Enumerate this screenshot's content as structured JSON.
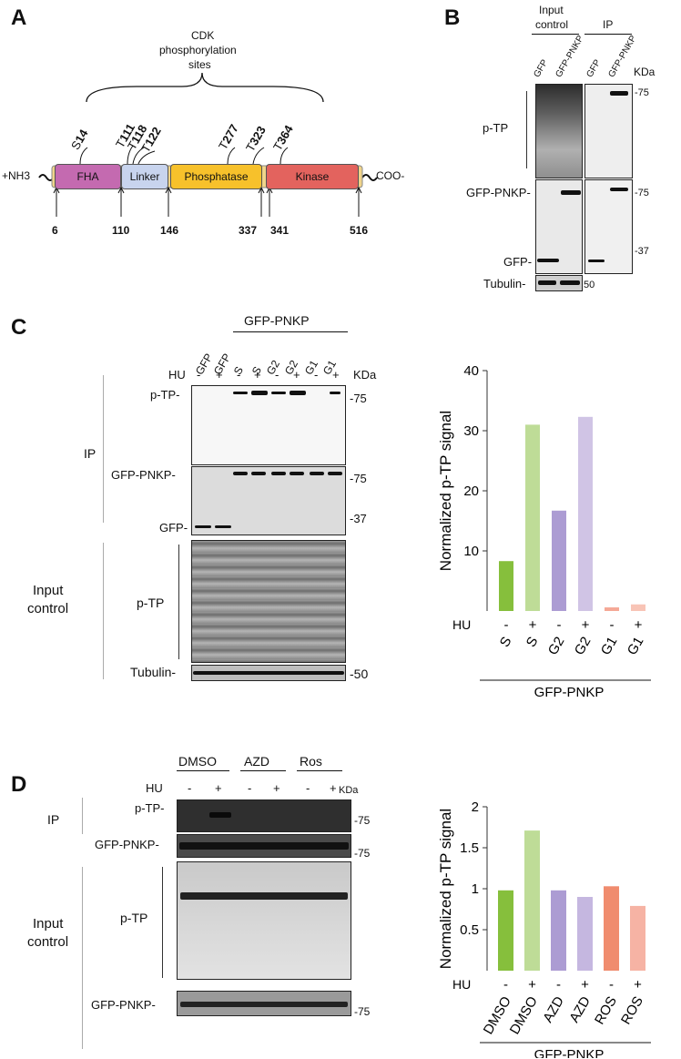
{
  "panels": {
    "a": "A",
    "b": "B",
    "c": "C",
    "d": "D"
  },
  "panel_a": {
    "title_line1": "CDK",
    "title_line2": "phosphorylation",
    "title_line3": "sites",
    "n_term": "+NH3",
    "c_term": "COO-",
    "domains": [
      {
        "label": "FHA",
        "color": "#c46ab0"
      },
      {
        "label": "Linker",
        "color": "#c8d4ee"
      },
      {
        "label": "Phosphatase",
        "color": "#f7c12b"
      },
      {
        "label": "Kinase",
        "color": "#e3635e"
      }
    ],
    "sites": [
      {
        "prefix": "S",
        "num": "14"
      },
      {
        "prefix": "T",
        "num": "111"
      },
      {
        "prefix": "T",
        "num": "118"
      },
      {
        "prefix": "T",
        "num": "122"
      },
      {
        "prefix": "T",
        "num": "277"
      },
      {
        "prefix": "T",
        "num": "323"
      },
      {
        "prefix": "T",
        "num": "364"
      }
    ],
    "boundaries": [
      "6",
      "110",
      "146",
      "337",
      "341",
      "516"
    ]
  },
  "panel_b": {
    "group_input_l1": "Input",
    "group_input_l2": "control",
    "group_ip": "IP",
    "lanes": [
      "GFP",
      "GFP-PNKP",
      "GFP",
      "GFP-PNKP"
    ],
    "kda": "KDa",
    "rows": [
      "p-TP",
      "GFP-PNKP-",
      "GFP-",
      "Tubulin-"
    ],
    "markers": [
      "-75",
      "-75",
      "-37",
      "50"
    ]
  },
  "panel_c": {
    "group": "GFP-PNKP",
    "lanes": [
      "GFP",
      "GFP",
      "S",
      "S",
      "G2",
      "G2",
      "G1",
      "G1"
    ],
    "hu_label": "HU",
    "hu": [
      "-",
      "+",
      "-",
      "+",
      "-",
      "+",
      "-",
      "+"
    ],
    "kda": "KDa",
    "ip": "IP",
    "input_l1": "Input",
    "input_l2": "control",
    "rows": [
      "p-TP-",
      "GFP-PNKP-",
      "GFP-",
      "p-TP",
      "Tubulin-"
    ],
    "markers": [
      "-75",
      "-75",
      "-37",
      "-50"
    ]
  },
  "panel_d": {
    "groups": [
      "DMSO",
      "AZD",
      "Ros"
    ],
    "hu_label": "HU",
    "hu": [
      "-",
      "+",
      "-",
      "+",
      "-",
      "+"
    ],
    "kda": "KDa",
    "ip": "IP",
    "input_l1": "Input",
    "input_l2": "control",
    "rows": [
      "p-TP-",
      "GFP-PNKP-",
      "p-TP",
      "GFP-PNKP-"
    ],
    "markers": [
      "-75",
      "-75",
      "-75"
    ]
  },
  "chart_data": [
    {
      "type": "bar",
      "ylabel": "Normalized p-TP signal",
      "xlabel": "GFP-PNKP",
      "ylim": [
        0,
        40
      ],
      "yticks": [
        10,
        20,
        30,
        40
      ],
      "hu_label": "HU",
      "categories": [
        "S",
        "S",
        "G2",
        "G2",
        "G1",
        "G1"
      ],
      "hu": [
        "-",
        "+",
        "-",
        "+",
        "-",
        "+"
      ],
      "values": [
        8.3,
        31,
        16.7,
        32.3,
        0.6,
        1.1
      ],
      "colors": [
        "#86bf3c",
        "#bedc97",
        "#ac9cd3",
        "#d0c4e5",
        "#f5a896",
        "#f8c4b6"
      ]
    },
    {
      "type": "bar",
      "ylabel": "Normalized p-TP signal",
      "xlabel": "GFP-PNKP",
      "ylim": [
        0,
        2
      ],
      "yticks": [
        0.5,
        1,
        1.5,
        2
      ],
      "ytick_labels": [
        "0.5",
        "1",
        "1.5",
        "2"
      ],
      "hu_label": "HU",
      "categories": [
        "DMSO",
        "DMSO",
        "AZD",
        "AZD",
        "ROS",
        "ROS"
      ],
      "hu": [
        "-",
        "+",
        "-",
        "+",
        "-",
        "+"
      ],
      "values": [
        0.98,
        1.71,
        0.98,
        0.9,
        1.03,
        0.79
      ],
      "colors": [
        "#86bf3c",
        "#bedc97",
        "#ac9cd3",
        "#c5b7e0",
        "#f08c6e",
        "#f6b3a4"
      ]
    }
  ]
}
